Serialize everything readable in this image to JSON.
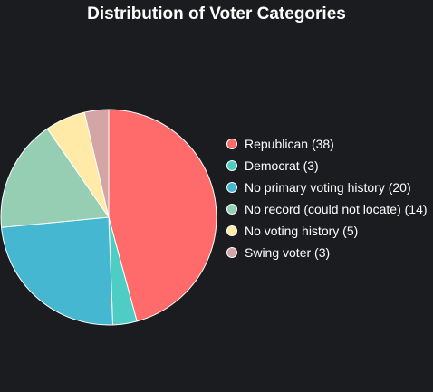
{
  "chart_data": {
    "type": "pie",
    "title": "Distribution of Voter Categories",
    "categories": [
      "Republican",
      "Democrat",
      "No primary voting history",
      "No record (could not locate)",
      "No voting history",
      "Swing voter"
    ],
    "values": [
      38,
      3,
      20,
      14,
      5,
      3
    ],
    "colors": [
      "#ff6b6b",
      "#4ecdc4",
      "#45b7d1",
      "#96ceb4",
      "#ffeaa7",
      "#d4a5a5"
    ],
    "legend_labels": [
      "Republican (38)",
      "Democrat (3)",
      "No primary voting history (20)",
      "No record (could not locate) (14)",
      "No voting history (5)",
      "Swing voter (3)"
    ],
    "legend_position": "right",
    "start_angle": "top",
    "direction": "clockwise"
  }
}
